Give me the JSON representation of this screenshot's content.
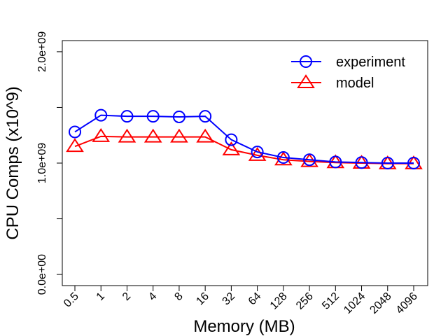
{
  "chart_data": {
    "type": "line",
    "xlabel": "Memory (MB)",
    "ylabel": "CPU Comps (x10^9)",
    "categories": [
      "0.5",
      "1",
      "2",
      "4",
      "8",
      "16",
      "32",
      "64",
      "128",
      "256",
      "512",
      "1024",
      "2048",
      "4096"
    ],
    "ylim": [
      -100000000,
      2100000000
    ],
    "yticks": [
      0,
      500000000,
      1000000000,
      1500000000,
      2000000000
    ],
    "ytick_labels": [
      "0.0e+00",
      "",
      "1.0e+09",
      "",
      "2.0e+09"
    ],
    "grid": false,
    "legend": "top-right",
    "series": [
      {
        "name": "experiment",
        "color": "#0000ff",
        "marker": "circle",
        "values": [
          1280000000,
          1430000000,
          1420000000,
          1420000000,
          1415000000,
          1420000000,
          1210000000,
          1100000000,
          1050000000,
          1030000000,
          1010000000,
          1005000000,
          1000000000,
          1000000000
        ]
      },
      {
        "name": "model",
        "color": "#ff0000",
        "marker": "triangle",
        "values": [
          1150000000,
          1240000000,
          1235000000,
          1235000000,
          1235000000,
          1235000000,
          1120000000,
          1070000000,
          1030000000,
          1015000000,
          1005000000,
          1000000000,
          995000000,
          995000000
        ]
      }
    ]
  }
}
